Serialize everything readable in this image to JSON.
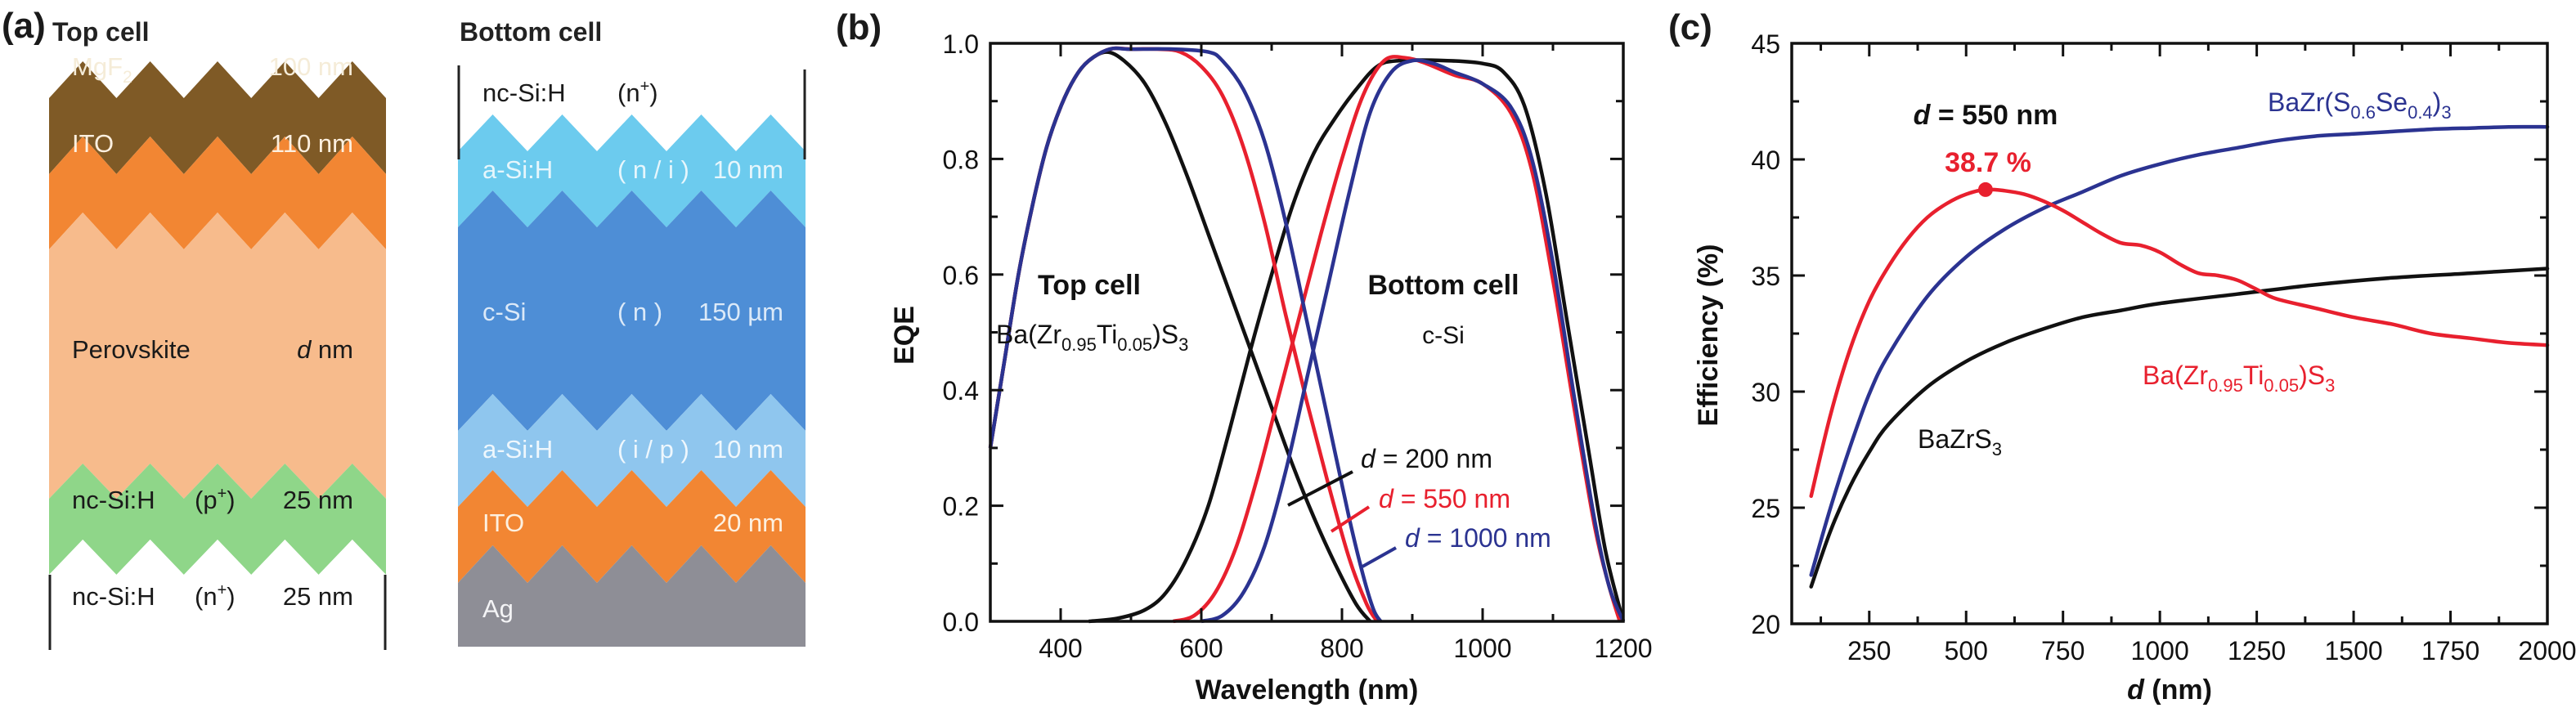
{
  "panels": {
    "a": {
      "label": "(a)",
      "top_cell": {
        "title": "Top cell",
        "layers": [
          {
            "name": "MgF",
            "sub": "2",
            "mid": "",
            "thickness": "100 nm",
            "color": "#7f5a26",
            "text_color": "#f5ecd8"
          },
          {
            "name": "ITO",
            "sub": "",
            "mid": "",
            "thickness": "110 nm",
            "color": "#f28633",
            "text_color": "#fdf0e0"
          },
          {
            "name": "Perovskite",
            "sub": "",
            "mid": "",
            "thickness_italic": "d",
            "thickness": " nm",
            "color": "#f7bb8c",
            "text_color": "#1a1a1a"
          },
          {
            "name": "nc-Si:H",
            "sub": "",
            "mid": "(p",
            "mid_sup": "+",
            "mid_end": ")",
            "thickness": "25 nm",
            "color": "#8fd689",
            "text_color": "#1a1a1a"
          },
          {
            "name": "nc-Si:H",
            "sub": "",
            "mid": "(n",
            "mid_sup": "+",
            "mid_end": ")",
            "thickness": "25 nm",
            "color": "#ffffff",
            "text_color": "#1a1a1a"
          }
        ]
      },
      "bottom_cell": {
        "title": "Bottom cell",
        "layers": [
          {
            "name": "nc-Si:H",
            "mid": "(n",
            "mid_sup": "+",
            "mid_end": ")",
            "thickness": "",
            "color": "#ffffff",
            "text_color": "#1a1a1a"
          },
          {
            "name": "a-Si:H",
            "mid": "( n / i )",
            "thickness": "10 nm",
            "color": "#6ccbee",
            "text_color": "#e6f6fc"
          },
          {
            "name": "c-Si",
            "mid": "( n )",
            "thickness": "150 µm",
            "color": "#4e8ed6",
            "text_color": "#dbe9f8"
          },
          {
            "name": "a-Si:H",
            "mid": "( i / p )",
            "thickness": "10 nm",
            "color": "#8fc6ee",
            "text_color": "#eef7fd"
          },
          {
            "name": "ITO",
            "mid": "",
            "thickness": "20 nm",
            "color": "#f28633",
            "text_color": "#fdf0e0"
          },
          {
            "name": "Ag",
            "mid": "",
            "thickness": "",
            "color": "#8e8e96",
            "text_color": "#f4f4f6"
          }
        ]
      }
    },
    "b": {
      "label": "(b)",
      "annotations": {
        "top_cell_title": "Top cell",
        "top_cell_material": {
          "base": "Ba(Zr",
          "s1": "0.95",
          "mid": "Ti",
          "s2": "0.05",
          "end": ")S",
          "s3": "3"
        },
        "bottom_cell_title": "Bottom cell",
        "bottom_cell_material": "c-Si",
        "legend": [
          {
            "italic": "d",
            "text": " = 200 nm",
            "color": "#111111"
          },
          {
            "italic": "d",
            "text": " = 550 nm",
            "color": "#e8202e"
          },
          {
            "italic": "d",
            "text": " = 1000 nm",
            "color": "#2b3391"
          }
        ]
      }
    },
    "c": {
      "label": "(c)",
      "annotations": {
        "optimum_label_italic": "d",
        "optimum_label": " = 550 nm",
        "optimum_value": "38.7 %",
        "series_labels": [
          {
            "text": "BaZr(S",
            "s1": "0.6",
            "mid": "Se",
            "s2": "0.4",
            "end": ")",
            "s3": "3",
            "color": "#2b3391"
          },
          {
            "text": "Ba(Zr",
            "s1": "0.95",
            "mid": "Ti",
            "s2": "0.05",
            "end": ")S",
            "s3": "3",
            "color": "#e8202e"
          },
          {
            "text": "BaZrS",
            "s1": "",
            "mid": "",
            "s2": "",
            "end": "",
            "s3": "3",
            "color": "#111111"
          }
        ]
      }
    }
  },
  "chart_data": [
    {
      "type": "line",
      "panel": "b",
      "title": "",
      "xlabel": "Wavelength (nm)",
      "ylabel": "EQE",
      "xlim": [
        300,
        1200
      ],
      "ylim": [
        0,
        1.0
      ],
      "xticks": [
        400,
        600,
        800,
        1000,
        1200
      ],
      "yticks": [
        0.0,
        0.2,
        0.4,
        0.6,
        0.8,
        1.0
      ],
      "ytick_labels": [
        "0.0",
        "0.2",
        "0.4",
        "0.6",
        "0.8",
        "1.0"
      ],
      "grid": false,
      "series": [
        {
          "name": "Top cell, d = 200 nm",
          "color": "#111111",
          "x": [
            300,
            320,
            340,
            360,
            380,
            400,
            420,
            440,
            465,
            490,
            520,
            550,
            580,
            610,
            640,
            670,
            700,
            730,
            760,
            790,
            820,
            840
          ],
          "y": [
            0.3,
            0.45,
            0.6,
            0.72,
            0.82,
            0.89,
            0.94,
            0.97,
            0.985,
            0.97,
            0.93,
            0.86,
            0.77,
            0.67,
            0.57,
            0.47,
            0.37,
            0.27,
            0.18,
            0.1,
            0.03,
            0.0
          ]
        },
        {
          "name": "Top cell, d = 550 nm",
          "color": "#e8202e",
          "x": [
            300,
            320,
            340,
            360,
            380,
            400,
            420,
            440,
            470,
            500,
            540,
            570,
            600,
            630,
            660,
            690,
            720,
            750,
            780,
            810,
            835,
            850
          ],
          "y": [
            0.3,
            0.45,
            0.6,
            0.72,
            0.82,
            0.89,
            0.94,
            0.97,
            0.99,
            0.99,
            0.99,
            0.985,
            0.96,
            0.91,
            0.82,
            0.69,
            0.53,
            0.38,
            0.24,
            0.11,
            0.03,
            0.0
          ]
        },
        {
          "name": "Top cell, d = 1000 nm",
          "color": "#2b3391",
          "x": [
            300,
            320,
            340,
            360,
            380,
            400,
            420,
            440,
            470,
            500,
            560,
            610,
            630,
            660,
            690,
            720,
            750,
            780,
            810,
            830,
            845,
            855
          ],
          "y": [
            0.3,
            0.45,
            0.6,
            0.72,
            0.82,
            0.89,
            0.94,
            0.97,
            0.99,
            0.99,
            0.99,
            0.985,
            0.97,
            0.92,
            0.83,
            0.69,
            0.52,
            0.35,
            0.18,
            0.08,
            0.02,
            0.0
          ]
        },
        {
          "name": "Bottom cell, d = 200 nm",
          "color": "#111111",
          "x": [
            440,
            480,
            520,
            550,
            580,
            610,
            640,
            670,
            700,
            730,
            760,
            790,
            820,
            850,
            880,
            950,
            1000,
            1030,
            1060,
            1090,
            1120,
            1150,
            1175,
            1200
          ],
          "y": [
            0.0,
            0.005,
            0.02,
            0.05,
            0.11,
            0.2,
            0.33,
            0.47,
            0.6,
            0.72,
            0.81,
            0.87,
            0.92,
            0.96,
            0.97,
            0.97,
            0.965,
            0.95,
            0.89,
            0.74,
            0.52,
            0.3,
            0.12,
            0.0
          ]
        },
        {
          "name": "Bottom cell, d = 550 nm",
          "color": "#e8202e",
          "x": [
            560,
            590,
            620,
            650,
            680,
            710,
            740,
            770,
            800,
            830,
            860,
            890,
            920,
            960,
            1000,
            1040,
            1070,
            1100,
            1130,
            1160,
            1180,
            1195
          ],
          "y": [
            0.0,
            0.01,
            0.05,
            0.13,
            0.25,
            0.39,
            0.53,
            0.67,
            0.8,
            0.91,
            0.97,
            0.975,
            0.965,
            0.945,
            0.93,
            0.88,
            0.78,
            0.59,
            0.37,
            0.16,
            0.06,
            0.0
          ]
        },
        {
          "name": "Bottom cell, d = 1000 nm",
          "color": "#2b3391",
          "x": [
            600,
            630,
            660,
            690,
            720,
            750,
            780,
            810,
            840,
            870,
            900,
            930,
            960,
            1000,
            1040,
            1070,
            1100,
            1130,
            1160,
            1180,
            1200
          ],
          "y": [
            0.0,
            0.01,
            0.05,
            0.13,
            0.26,
            0.42,
            0.58,
            0.74,
            0.88,
            0.95,
            0.97,
            0.965,
            0.95,
            0.93,
            0.89,
            0.8,
            0.62,
            0.39,
            0.17,
            0.06,
            0.0
          ]
        }
      ],
      "legend": [
        {
          "label": "d = 200 nm",
          "color": "#111111"
        },
        {
          "label": "d = 550 nm",
          "color": "#e8202e"
        },
        {
          "label": "d = 1000 nm",
          "color": "#2b3391"
        }
      ],
      "legend_placement": "bottom-center"
    },
    {
      "type": "line",
      "panel": "c",
      "title": "",
      "xlabel": "d (nm)",
      "ylabel": "Efficiency (%)",
      "xlim": [
        50,
        2000
      ],
      "ylim": [
        20,
        45
      ],
      "xticks": [
        250,
        500,
        750,
        1000,
        1250,
        1500,
        1750,
        2000
      ],
      "yticks": [
        20,
        25,
        30,
        35,
        40,
        45
      ],
      "grid": false,
      "series": [
        {
          "name": "Ba(Zr0.95Ti0.05)S3",
          "color": "#e8202e",
          "x": [
            100,
            150,
            200,
            250,
            300,
            350,
            400,
            450,
            500,
            550,
            600,
            650,
            700,
            750,
            800,
            850,
            900,
            950,
            1000,
            1050,
            1100,
            1150,
            1200,
            1250,
            1300,
            1400,
            1500,
            1600,
            1700,
            1800,
            1900,
            2000
          ],
          "y": [
            25.5,
            29.0,
            31.8,
            33.9,
            35.4,
            36.6,
            37.5,
            38.1,
            38.5,
            38.7,
            38.65,
            38.5,
            38.2,
            37.8,
            37.3,
            36.8,
            36.4,
            36.3,
            36.0,
            35.5,
            35.1,
            35.0,
            34.8,
            34.4,
            34.0,
            33.6,
            33.2,
            32.9,
            32.5,
            32.3,
            32.1,
            32.0
          ]
        },
        {
          "name": "BaZr(S0.6Se0.4)3",
          "color": "#2b3391",
          "x": [
            100,
            150,
            200,
            250,
            300,
            400,
            500,
            600,
            700,
            800,
            900,
            1000,
            1100,
            1200,
            1300,
            1400,
            1500,
            1600,
            1700,
            1800,
            1900,
            2000
          ],
          "y": [
            22.1,
            25.0,
            27.6,
            29.9,
            31.6,
            34.1,
            35.8,
            37.0,
            37.9,
            38.6,
            39.3,
            39.8,
            40.2,
            40.5,
            40.8,
            41.0,
            41.1,
            41.2,
            41.3,
            41.35,
            41.4,
            41.4
          ]
        },
        {
          "name": "BaZrS3",
          "color": "#111111",
          "x": [
            100,
            150,
            200,
            250,
            300,
            400,
            500,
            600,
            700,
            800,
            900,
            1000,
            1200,
            1400,
            1600,
            1800,
            2000
          ],
          "y": [
            21.6,
            24.0,
            25.9,
            27.4,
            28.6,
            30.2,
            31.3,
            32.1,
            32.7,
            33.2,
            33.5,
            33.8,
            34.2,
            34.6,
            34.9,
            35.1,
            35.3
          ]
        }
      ],
      "highlight_point": {
        "x": 550,
        "y": 38.7,
        "label": "38.7 %",
        "color": "#e8202e"
      }
    }
  ]
}
